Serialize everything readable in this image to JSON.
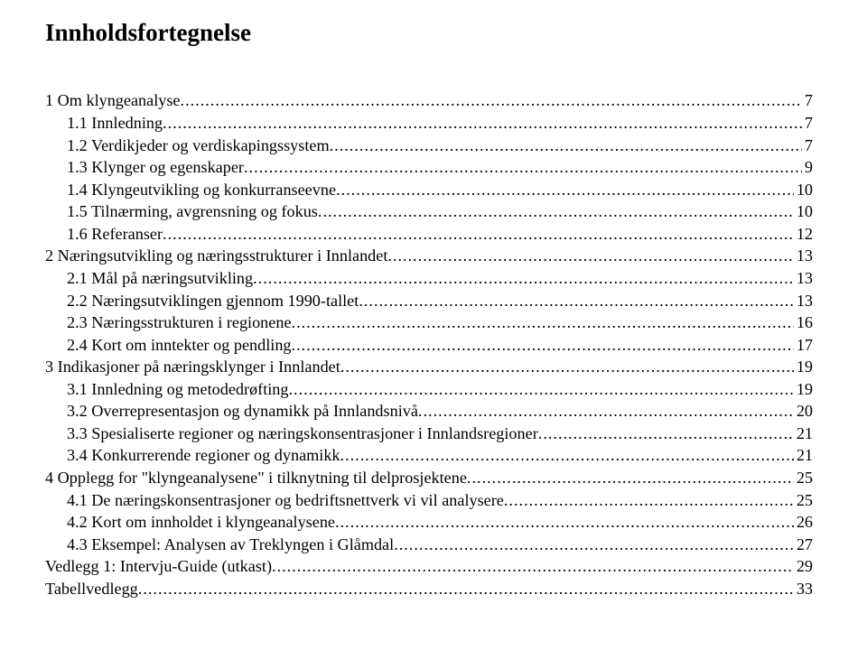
{
  "title": "Innholdsfortegnelse",
  "toc": [
    {
      "indent": 0,
      "label": "1 Om klyngeanalyse",
      "page": "7"
    },
    {
      "indent": 1,
      "label": "1.1 Innledning",
      "page": "7"
    },
    {
      "indent": 1,
      "label": "1.2 Verdikjeder og verdiskapingssystem",
      "page": "7"
    },
    {
      "indent": 1,
      "label": "1.3 Klynger og egenskaper",
      "page": "9"
    },
    {
      "indent": 1,
      "label": "1.4 Klyngeutvikling og konkurranseevne",
      "page": "10"
    },
    {
      "indent": 1,
      "label": "1.5 Tilnærming, avgrensning og fokus",
      "page": "10"
    },
    {
      "indent": 1,
      "label": "1.6 Referanser",
      "page": "12"
    },
    {
      "indent": 0,
      "label": "2 Næringsutvikling og næringsstrukturer i Innlandet",
      "page": "13"
    },
    {
      "indent": 1,
      "label": "2.1 Mål på næringsutvikling",
      "page": "13"
    },
    {
      "indent": 1,
      "label": "2.2 Næringsutviklingen gjennom 1990-tallet",
      "page": "13"
    },
    {
      "indent": 1,
      "label": "2.3 Næringsstrukturen i regionene",
      "page": "16"
    },
    {
      "indent": 1,
      "label": "2.4 Kort om inntekter og pendling",
      "page": "17"
    },
    {
      "indent": 0,
      "label": "3 Indikasjoner på næringsklynger i Innlandet",
      "page": "19"
    },
    {
      "indent": 1,
      "label": "3.1 Innledning og metodedrøfting",
      "page": "19"
    },
    {
      "indent": 1,
      "label": "3.2 Overrepresentasjon og dynamikk på Innlandsnivå",
      "page": "20"
    },
    {
      "indent": 1,
      "label": "3.3 Spesialiserte regioner og næringskonsentrasjoner i Innlandsregioner",
      "page": "21"
    },
    {
      "indent": 1,
      "label": "3.4 Konkurrerende regioner og dynamikk",
      "page": "21"
    },
    {
      "indent": 0,
      "label": "4 Opplegg for \"klyngeanalysene\" i tilknytning til delprosjektene",
      "page": "25"
    },
    {
      "indent": 1,
      "label": "4.1 De næringskonsentrasjoner og bedriftsnettverk vi vil analysere",
      "page": "25"
    },
    {
      "indent": 1,
      "label": "4.2 Kort om innholdet i klyngeanalysene",
      "page": "26"
    },
    {
      "indent": 1,
      "label": "4.3 Eksempel: Analysen av Treklyngen i Glåmdal",
      "page": "27"
    },
    {
      "indent": 0,
      "label": "Vedlegg 1: Intervju-Guide (utkast)",
      "page": "29"
    },
    {
      "indent": 0,
      "label": "Tabellvedlegg",
      "page": "33"
    }
  ]
}
